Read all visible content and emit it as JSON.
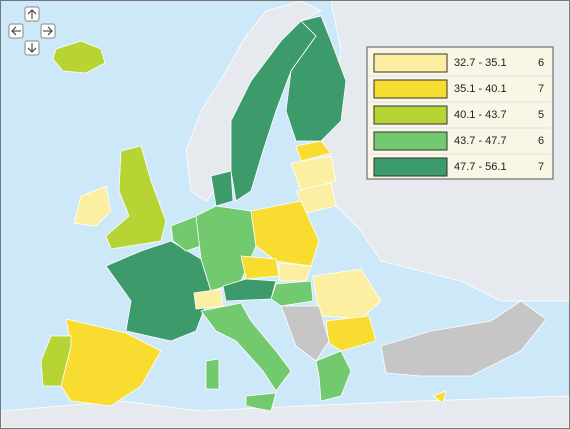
{
  "legend": {
    "classes": [
      {
        "label": "32.7 - 35.1",
        "count": 6,
        "color": "#fcefa1"
      },
      {
        "label": "35.1 - 40.1",
        "count": 7,
        "color": "#f9dc30"
      },
      {
        "label": "40.1 - 43.7",
        "count": 5,
        "color": "#b7d435"
      },
      {
        "label": "43.7 - 47.7",
        "count": 6,
        "color": "#72c96e"
      },
      {
        "label": "47.7 - 56.1",
        "count": 7,
        "color": "#3d9b6b"
      }
    ]
  }
}
